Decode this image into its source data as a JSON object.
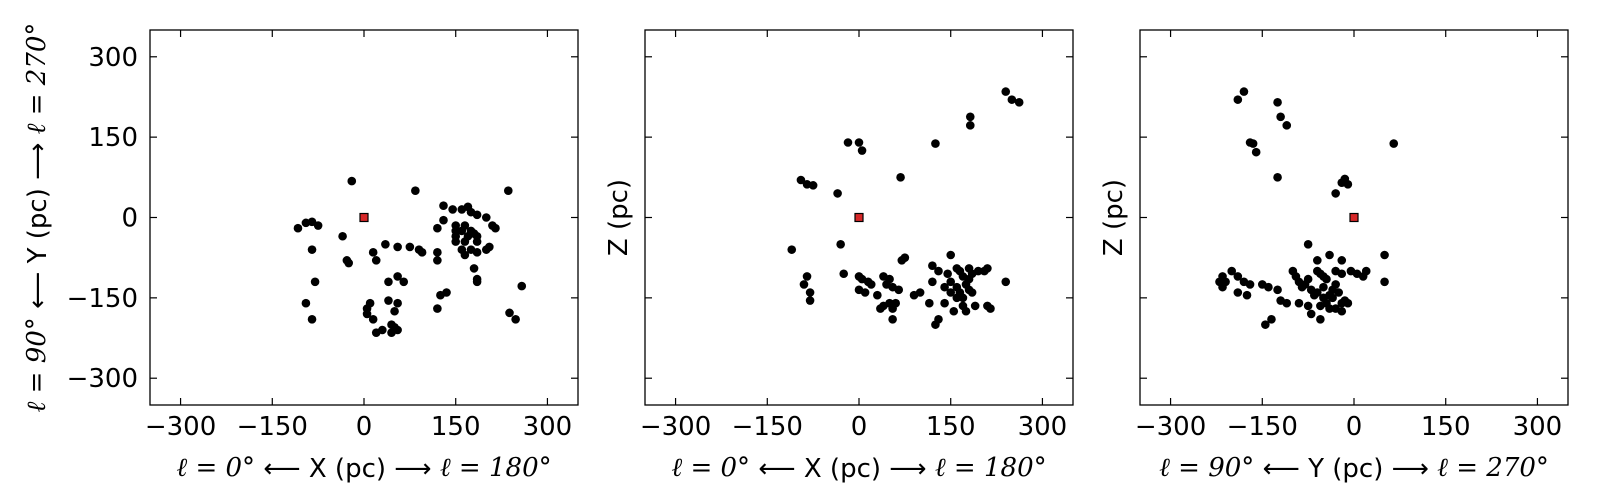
{
  "chart_data": [
    {
      "type": "scatter",
      "xlabel": {
        "left": "ℓ = 0°",
        "arrow_left": "⟵",
        "text": "X (pc)",
        "arrow_right": "⟶",
        "right": "ℓ = 180°"
      },
      "ylabel": {
        "left": "ℓ = 90°",
        "arrow_left": "⟵",
        "text": "Y (pc)",
        "arrow_right": "⟶",
        "right": "ℓ = 270°"
      },
      "xlim": [
        -350,
        350
      ],
      "ylim": [
        -350,
        350
      ],
      "xticks": [
        "−300",
        "−150",
        "0",
        "150",
        "300"
      ],
      "yticks": [
        "−300",
        "−150",
        "0",
        "150",
        "300"
      ],
      "show_yticklabels": true,
      "point_color": "#000000",
      "origin_marker": {
        "x": 0,
        "y": 0,
        "color": "#d62728"
      },
      "points": [
        [
          -20,
          68
        ],
        [
          84,
          50
        ],
        [
          236,
          50
        ],
        [
          130,
          22
        ],
        [
          145,
          15
        ],
        [
          160,
          15
        ],
        [
          170,
          20
        ],
        [
          175,
          10
        ],
        [
          185,
          5
        ],
        [
          200,
          0
        ],
        [
          130,
          -5
        ],
        [
          150,
          -15
        ],
        [
          165,
          -15
        ],
        [
          120,
          -20
        ],
        [
          210,
          -15
        ],
        [
          215,
          -20
        ],
        [
          150,
          -25
        ],
        [
          160,
          -25
        ],
        [
          175,
          -25
        ],
        [
          180,
          -30
        ],
        [
          150,
          -35
        ],
        [
          170,
          -35
        ],
        [
          185,
          -35
        ],
        [
          150,
          -45
        ],
        [
          165,
          -45
        ],
        [
          185,
          -45
        ],
        [
          75,
          -55
        ],
        [
          90,
          -60
        ],
        [
          95,
          -65
        ],
        [
          160,
          -60
        ],
        [
          175,
          -60
        ],
        [
          200,
          -60
        ],
        [
          205,
          -55
        ],
        [
          185,
          -65
        ],
        [
          165,
          -70
        ],
        [
          120,
          -65
        ],
        [
          120,
          -80
        ],
        [
          180,
          -95
        ],
        [
          185,
          -115
        ],
        [
          185,
          -120
        ],
        [
          135,
          -140
        ],
        [
          125,
          -145
        ],
        [
          120,
          -170
        ],
        [
          238,
          -178
        ],
        [
          248,
          -190
        ],
        [
          258,
          -128
        ],
        [
          -108,
          -20
        ],
        [
          -95,
          -10
        ],
        [
          -85,
          -8
        ],
        [
          -75,
          -15
        ],
        [
          -85,
          -60
        ],
        [
          -80,
          -120
        ],
        [
          -95,
          -160
        ],
        [
          -85,
          -190
        ],
        [
          -35,
          -35
        ],
        [
          -25,
          -85
        ],
        [
          -28,
          -80
        ],
        [
          15,
          -65
        ],
        [
          20,
          -80
        ],
        [
          35,
          -50
        ],
        [
          55,
          -55
        ],
        [
          40,
          -120
        ],
        [
          55,
          -110
        ],
        [
          65,
          -120
        ],
        [
          40,
          -155
        ],
        [
          55,
          -160
        ],
        [
          10,
          -160
        ],
        [
          5,
          -170
        ],
        [
          5,
          -180
        ],
        [
          15,
          -190
        ],
        [
          30,
          -210
        ],
        [
          45,
          -215
        ],
        [
          50,
          -205
        ],
        [
          45,
          -200
        ],
        [
          55,
          -210
        ],
        [
          50,
          -175
        ],
        [
          20,
          -215
        ]
      ]
    },
    {
      "type": "scatter",
      "xlabel": {
        "left": "ℓ = 0°",
        "arrow_left": "⟵",
        "text": "X (pc)",
        "arrow_right": "⟶",
        "right": "ℓ = 180°"
      },
      "ylabel": {
        "text": "Z (pc)"
      },
      "xlim": [
        -350,
        350
      ],
      "ylim": [
        -350,
        350
      ],
      "xticks": [
        "−300",
        "−150",
        "0",
        "150",
        "300"
      ],
      "yticks": [
        "",
        "",
        "",
        "",
        ""
      ],
      "show_yticklabels": false,
      "point_color": "#000000",
      "origin_marker": {
        "x": 0,
        "y": 0,
        "color": "#d62728"
      },
      "points": [
        [
          240,
          235
        ],
        [
          250,
          220
        ],
        [
          262,
          215
        ],
        [
          182,
          188
        ],
        [
          182,
          172
        ],
        [
          125,
          138
        ],
        [
          -18,
          140
        ],
        [
          0,
          140
        ],
        [
          5,
          125
        ],
        [
          68,
          75
        ],
        [
          -95,
          70
        ],
        [
          -85,
          62
        ],
        [
          -75,
          60
        ],
        [
          -35,
          45
        ],
        [
          -30,
          -50
        ],
        [
          -110,
          -60
        ],
        [
          -25,
          -105
        ],
        [
          -85,
          -110
        ],
        [
          -90,
          -125
        ],
        [
          -80,
          -140
        ],
        [
          -80,
          -155
        ],
        [
          0,
          -110
        ],
        [
          5,
          -115
        ],
        [
          15,
          -120
        ],
        [
          20,
          -125
        ],
        [
          40,
          -110
        ],
        [
          50,
          -115
        ],
        [
          45,
          -125
        ],
        [
          55,
          -130
        ],
        [
          65,
          -135
        ],
        [
          75,
          -75
        ],
        [
          70,
          -80
        ],
        [
          120,
          -90
        ],
        [
          130,
          -100
        ],
        [
          145,
          -105
        ],
        [
          150,
          -70
        ],
        [
          160,
          -95
        ],
        [
          165,
          -100
        ],
        [
          170,
          -110
        ],
        [
          180,
          -95
        ],
        [
          185,
          -105
        ],
        [
          195,
          -100
        ],
        [
          205,
          -100
        ],
        [
          210,
          -95
        ],
        [
          240,
          -120
        ],
        [
          150,
          -120
        ],
        [
          160,
          -130
        ],
        [
          175,
          -125
        ],
        [
          180,
          -135
        ],
        [
          170,
          -150
        ],
        [
          160,
          -150
        ],
        [
          170,
          -165
        ],
        [
          175,
          -175
        ],
        [
          190,
          -165
        ],
        [
          210,
          -165
        ],
        [
          215,
          -170
        ],
        [
          115,
          -160
        ],
        [
          130,
          -190
        ],
        [
          125,
          -200
        ],
        [
          100,
          -140
        ],
        [
          90,
          -145
        ],
        [
          60,
          -160
        ],
        [
          50,
          -160
        ],
        [
          55,
          -170
        ],
        [
          40,
          -165
        ],
        [
          35,
          -170
        ],
        [
          30,
          -145
        ],
        [
          55,
          -190
        ],
        [
          10,
          -140
        ],
        [
          0,
          -135
        ],
        [
          120,
          -120
        ],
        [
          140,
          -130
        ],
        [
          150,
          -140
        ],
        [
          165,
          -140
        ],
        [
          180,
          -115
        ],
        [
          185,
          -140
        ],
        [
          140,
          -160
        ],
        [
          155,
          -175
        ]
      ]
    },
    {
      "type": "scatter",
      "xlabel": {
        "left": "ℓ = 90°",
        "arrow_left": "⟵",
        "text": "Y (pc)",
        "arrow_right": "⟶",
        "right": "ℓ = 270°"
      },
      "ylabel": {
        "text": "Z (pc)"
      },
      "xlim": [
        -350,
        350
      ],
      "ylim": [
        -350,
        350
      ],
      "xticks": [
        "−300",
        "−150",
        "0",
        "150",
        "300"
      ],
      "yticks": [
        "",
        "",
        "",
        "",
        ""
      ],
      "show_yticklabels": false,
      "point_color": "#000000",
      "origin_marker": {
        "x": 0,
        "y": 0,
        "color": "#d62728"
      },
      "points": [
        [
          -180,
          235
        ],
        [
          -190,
          220
        ],
        [
          -125,
          215
        ],
        [
          -120,
          188
        ],
        [
          -110,
          172
        ],
        [
          -170,
          140
        ],
        [
          -165,
          138
        ],
        [
          -160,
          122
        ],
        [
          -125,
          75
        ],
        [
          65,
          138
        ],
        [
          -15,
          72
        ],
        [
          -20,
          65
        ],
        [
          -10,
          62
        ],
        [
          -30,
          45
        ],
        [
          -75,
          -50
        ],
        [
          -40,
          -70
        ],
        [
          -60,
          -80
        ],
        [
          -20,
          -80
        ],
        [
          -200,
          -100
        ],
        [
          -215,
          -110
        ],
        [
          -210,
          -120
        ],
        [
          -190,
          -110
        ],
        [
          -180,
          -120
        ],
        [
          -170,
          -125
        ],
        [
          -150,
          -125
        ],
        [
          -140,
          -130
        ],
        [
          -220,
          -120
        ],
        [
          -215,
          -130
        ],
        [
          -190,
          -140
        ],
        [
          -175,
          -145
        ],
        [
          -100,
          -100
        ],
        [
          -95,
          -110
        ],
        [
          -90,
          -120
        ],
        [
          -80,
          -125
        ],
        [
          -75,
          -115
        ],
        [
          -60,
          -100
        ],
        [
          -55,
          -105
        ],
        [
          -50,
          -110
        ],
        [
          -45,
          -115
        ],
        [
          -30,
          -100
        ],
        [
          -20,
          -105
        ],
        [
          -5,
          -100
        ],
        [
          5,
          -105
        ],
        [
          15,
          -110
        ],
        [
          20,
          -100
        ],
        [
          50,
          -70
        ],
        [
          50,
          -120
        ],
        [
          -50,
          -130
        ],
        [
          -60,
          -140
        ],
        [
          -40,
          -145
        ],
        [
          -35,
          -150
        ],
        [
          -45,
          -160
        ],
        [
          -55,
          -165
        ],
        [
          -40,
          -170
        ],
        [
          -30,
          -170
        ],
        [
          -20,
          -175
        ],
        [
          -90,
          -160
        ],
        [
          -75,
          -165
        ],
        [
          -70,
          -180
        ],
        [
          -55,
          -190
        ],
        [
          -135,
          -190
        ],
        [
          -145,
          -200
        ],
        [
          -125,
          -135
        ],
        [
          -120,
          -155
        ],
        [
          -110,
          -160
        ],
        [
          -85,
          -130
        ],
        [
          -70,
          -135
        ],
        [
          -30,
          -125
        ],
        [
          -25,
          -140
        ],
        [
          -15,
          -155
        ],
        [
          -10,
          -160
        ],
        [
          -50,
          -150
        ],
        [
          -65,
          -145
        ],
        [
          -35,
          -135
        ],
        [
          -20,
          -160
        ]
      ]
    }
  ]
}
